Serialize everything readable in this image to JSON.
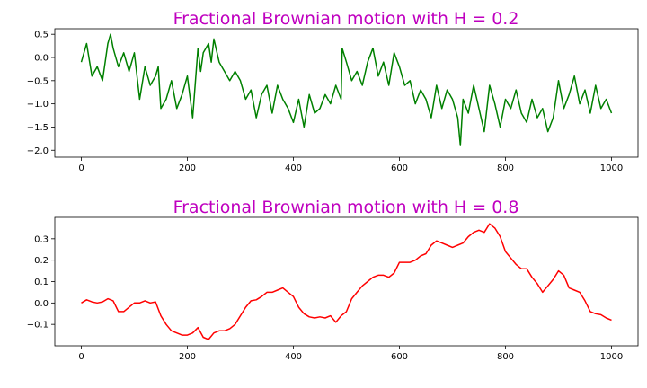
{
  "colors": {
    "title": "#bf00bf",
    "series_top": "#008000",
    "series_bottom": "#ff0000",
    "axes": "#000000"
  },
  "chart_data": [
    {
      "type": "line",
      "title": "Fractional Brownian motion with H = 0.2",
      "xlabel": "",
      "ylabel": "",
      "xlim": [
        -50,
        1050
      ],
      "ylim": [
        -2.15,
        0.62
      ],
      "xticks": [
        0,
        200,
        400,
        600,
        800,
        1000
      ],
      "xtick_labels": [
        "0",
        "200",
        "400",
        "600",
        "800",
        "1000"
      ],
      "yticks": [
        0.5,
        0.0,
        -0.5,
        -1.0,
        -1.5,
        -2.0
      ],
      "ytick_labels": [
        "0.5",
        "0.0",
        "−0.5",
        "−1.0",
        "−1.5",
        "−2.0"
      ],
      "grid": false,
      "series": [
        {
          "color": "#008000",
          "x": [
            0,
            10,
            20,
            30,
            40,
            50,
            55,
            60,
            70,
            80,
            90,
            100,
            110,
            120,
            130,
            140,
            145,
            150,
            160,
            170,
            180,
            190,
            200,
            210,
            220,
            225,
            230,
            240,
            245,
            250,
            260,
            270,
            280,
            290,
            300,
            310,
            320,
            330,
            340,
            350,
            360,
            370,
            380,
            390,
            400,
            410,
            420,
            430,
            440,
            450,
            460,
            470,
            480,
            490,
            492,
            500,
            510,
            520,
            530,
            540,
            550,
            560,
            570,
            580,
            590,
            600,
            610,
            620,
            630,
            640,
            650,
            660,
            670,
            680,
            690,
            700,
            710,
            715,
            720,
            730,
            740,
            750,
            760,
            770,
            780,
            790,
            800,
            810,
            820,
            830,
            840,
            850,
            860,
            870,
            880,
            890,
            900,
            910,
            920,
            930,
            940,
            950,
            960,
            970,
            980,
            990,
            1000
          ],
          "y": [
            -0.1,
            0.3,
            -0.4,
            -0.2,
            -0.5,
            0.3,
            0.5,
            0.2,
            -0.2,
            0.1,
            -0.3,
            0.1,
            -0.9,
            -0.2,
            -0.6,
            -0.4,
            -0.2,
            -1.1,
            -0.9,
            -0.5,
            -1.1,
            -0.8,
            -0.4,
            -1.3,
            0.2,
            -0.3,
            0.1,
            0.3,
            -0.1,
            0.4,
            -0.1,
            -0.3,
            -0.5,
            -0.3,
            -0.5,
            -0.9,
            -0.7,
            -1.3,
            -0.8,
            -0.6,
            -1.2,
            -0.6,
            -0.9,
            -1.1,
            -1.4,
            -0.9,
            -1.5,
            -0.8,
            -1.2,
            -1.1,
            -0.8,
            -1.0,
            -0.6,
            -0.9,
            0.2,
            -0.1,
            -0.5,
            -0.3,
            -0.6,
            -0.1,
            0.2,
            -0.4,
            -0.1,
            -0.6,
            0.1,
            -0.2,
            -0.6,
            -0.5,
            -1.0,
            -0.7,
            -0.9,
            -1.3,
            -0.6,
            -1.1,
            -0.7,
            -0.9,
            -1.3,
            -1.9,
            -0.9,
            -1.2,
            -0.6,
            -1.1,
            -1.6,
            -0.6,
            -1.0,
            -1.5,
            -0.9,
            -1.1,
            -0.7,
            -1.2,
            -1.4,
            -0.9,
            -1.3,
            -1.1,
            -1.6,
            -1.3,
            -0.5,
            -1.1,
            -0.8,
            -0.4,
            -1.0,
            -0.7,
            -1.2,
            -0.6,
            -1.1,
            -0.9,
            -1.2
          ]
        }
      ]
    },
    {
      "type": "line",
      "title": "Fractional Brownian motion with H = 0.8",
      "xlabel": "",
      "ylabel": "",
      "xlim": [
        -50,
        1050
      ],
      "ylim": [
        -0.2,
        0.4
      ],
      "xticks": [
        0,
        200,
        400,
        600,
        800,
        1000
      ],
      "xtick_labels": [
        "0",
        "200",
        "400",
        "600",
        "800",
        "1000"
      ],
      "yticks": [
        0.3,
        0.2,
        0.1,
        0.0,
        -0.1
      ],
      "ytick_labels": [
        "0.3",
        "0.2",
        "0.1",
        "0.0",
        "−0.1"
      ],
      "grid": false,
      "series": [
        {
          "color": "#ff0000",
          "x": [
            0,
            10,
            20,
            30,
            40,
            50,
            60,
            70,
            80,
            90,
            100,
            110,
            120,
            130,
            140,
            150,
            160,
            170,
            180,
            190,
            200,
            210,
            220,
            230,
            240,
            250,
            260,
            270,
            280,
            290,
            300,
            310,
            320,
            330,
            340,
            350,
            360,
            370,
            380,
            390,
            400,
            410,
            420,
            430,
            440,
            450,
            460,
            470,
            480,
            490,
            500,
            510,
            520,
            530,
            540,
            550,
            560,
            570,
            580,
            590,
            600,
            610,
            620,
            630,
            640,
            650,
            660,
            670,
            680,
            690,
            700,
            710,
            720,
            730,
            740,
            750,
            760,
            770,
            780,
            790,
            800,
            810,
            820,
            830,
            840,
            850,
            860,
            870,
            880,
            890,
            900,
            910,
            920,
            930,
            940,
            950,
            960,
            970,
            980,
            990,
            1000
          ],
          "y": [
            0.0,
            0.015,
            0.005,
            0.0,
            0.005,
            0.02,
            0.01,
            -0.04,
            -0.04,
            -0.02,
            0.0,
            0.0,
            0.01,
            0.0,
            0.005,
            -0.06,
            -0.1,
            -0.13,
            -0.14,
            -0.15,
            -0.15,
            -0.14,
            -0.115,
            -0.16,
            -0.17,
            -0.14,
            -0.13,
            -0.13,
            -0.12,
            -0.1,
            -0.06,
            -0.02,
            0.01,
            0.015,
            0.03,
            0.05,
            0.05,
            0.06,
            0.07,
            0.05,
            0.03,
            -0.02,
            -0.05,
            -0.065,
            -0.07,
            -0.065,
            -0.07,
            -0.06,
            -0.09,
            -0.06,
            -0.04,
            0.02,
            0.05,
            0.08,
            0.1,
            0.12,
            0.13,
            0.13,
            0.12,
            0.14,
            0.19,
            0.19,
            0.19,
            0.2,
            0.22,
            0.23,
            0.27,
            0.29,
            0.28,
            0.27,
            0.26,
            0.27,
            0.28,
            0.31,
            0.33,
            0.34,
            0.33,
            0.37,
            0.35,
            0.31,
            0.24,
            0.21,
            0.18,
            0.16,
            0.16,
            0.12,
            0.09,
            0.05,
            0.08,
            0.11,
            0.15,
            0.13,
            0.07,
            0.06,
            0.05,
            0.01,
            -0.04,
            -0.05,
            -0.055,
            -0.07,
            -0.08
          ]
        }
      ]
    }
  ]
}
